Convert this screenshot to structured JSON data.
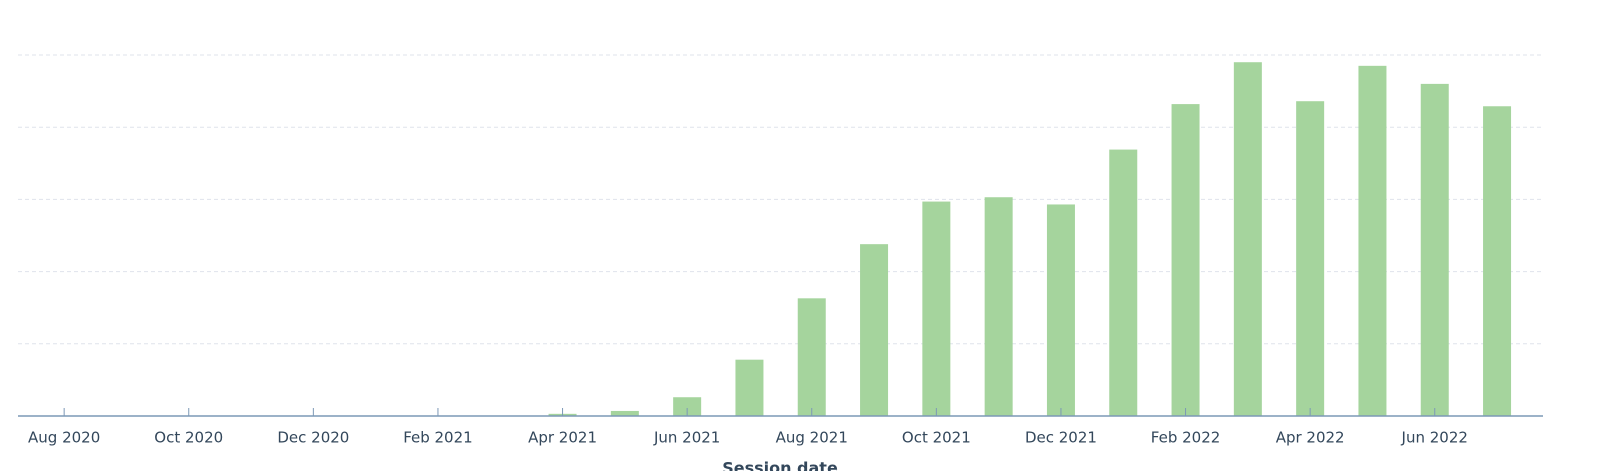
{
  "chart_data": {
    "type": "bar",
    "x_label": "Session date",
    "categories": [
      "Aug 2020",
      null,
      "Oct 2020",
      null,
      "Dec 2020",
      null,
      "Feb 2021",
      null,
      "Apr 2021",
      null,
      "Jun 2021",
      null,
      "Aug 2021",
      null,
      "Oct 2021",
      null,
      "Dec 2021",
      null,
      "Feb 2022",
      null,
      "Apr 2022",
      null,
      "Jun 2022",
      null
    ],
    "values": [
      0,
      0,
      0,
      0,
      0,
      0,
      0,
      0,
      0.03,
      0.07,
      0.26,
      0.78,
      1.63,
      2.38,
      2.97,
      3.03,
      2.93,
      3.69,
      4.32,
      4.9,
      4.36,
      4.85,
      4.6,
      4.29
    ],
    "color": "#a5d49d",
    "ylim": [
      0,
      5
    ],
    "yticks": [
      1,
      2,
      3,
      4,
      5
    ],
    "grid": true
  }
}
